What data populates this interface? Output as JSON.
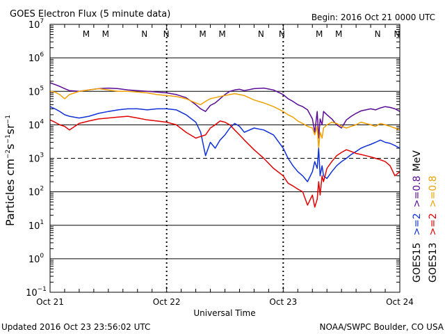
{
  "header": {
    "title": "GOES Electron Flux (5 minute data)",
    "begin": "Begin: 2016 Oct 21 0000 UTC"
  },
  "footer": {
    "updated": "Updated 2016 Oct 23 23:56:02 UTC",
    "credit": "NOAA/SWPC Boulder, CO USA"
  },
  "colors": {
    "purple": "#5a0a96",
    "orange": "#f0a000",
    "blue": "#1030d8",
    "red": "#e00000",
    "frame": "#000000"
  },
  "chart_data": {
    "type": "line",
    "title": "GOES Electron Flux (5 minute data)",
    "xlabel": "Universal Time",
    "ylabel": "Particles cm-2s-1sr-1",
    "ylabel_parts": {
      "main": "Particles cm",
      "e1": "−2",
      "s": "s",
      "e2": "−1",
      "sr": "sr",
      "e3": "−1"
    },
    "yscale": "log",
    "ylim": [
      0.1,
      10000000
    ],
    "y_ticks": [
      {
        "mant": "10",
        "exp": "7",
        "value": 10000000
      },
      {
        "mant": "10",
        "exp": "6",
        "value": 1000000
      },
      {
        "mant": "10",
        "exp": "5",
        "value": 100000
      },
      {
        "mant": "10",
        "exp": "4",
        "value": 10000
      },
      {
        "mant": "10",
        "exp": "3",
        "value": 1000
      },
      {
        "mant": "10",
        "exp": "2",
        "value": 100
      },
      {
        "mant": "10",
        "exp": "1",
        "value": 10
      },
      {
        "mant": "10",
        "exp": "0",
        "value": 1
      },
      {
        "mant": "10",
        "exp": "−1",
        "value": 0.1
      }
    ],
    "xlim": [
      0,
      72
    ],
    "x_unit": "hours since 2016 Oct 21 00:00 UTC",
    "x_ticks": [
      {
        "label": "Oct 21",
        "hours": 0
      },
      {
        "label": "Oct 22",
        "hours": 24
      },
      {
        "label": "Oct 23",
        "hours": 48
      },
      {
        "label": "Oct 24",
        "hours": 72
      }
    ],
    "gridlines_solid": [
      1000000,
      100000,
      10000,
      100,
      10,
      1
    ],
    "threshold_line": {
      "value": 1000,
      "style": "dashed"
    },
    "markers": [
      {
        "label": "M",
        "hours": 8.0,
        "color": "#e00000"
      },
      {
        "label": "M",
        "hours": 12.0,
        "color": "#1030d8"
      },
      {
        "label": "N",
        "hours": 20.0,
        "color": "#e00000"
      },
      {
        "label": "N",
        "hours": 24.5,
        "color": "#1030d8"
      },
      {
        "label": "M",
        "hours": 32.0,
        "color": "#e00000"
      },
      {
        "label": "M",
        "hours": 36.0,
        "color": "#1030d8"
      },
      {
        "label": "N",
        "hours": 44.0,
        "color": "#e00000"
      },
      {
        "label": "N",
        "hours": 48.3,
        "color": "#1030d8"
      },
      {
        "label": "M",
        "hours": 56.0,
        "color": "#e00000"
      },
      {
        "label": "M",
        "hours": 60.0,
        "color": "#1030d8"
      },
      {
        "label": "N",
        "hours": 68.0,
        "color": "#e00000"
      },
      {
        "label": "N",
        "hours": 72.0,
        "color": "#1030d8"
      }
    ],
    "legend": {
      "placement": "right, vertical",
      "goes15": "GOES15",
      "goes13": "GOES13",
      "goes15_2": ">=2",
      "goes15_08": ">=0.8",
      "goes13_2": ">=2",
      "goes13_08": ">=0.8",
      "unit": "MeV"
    },
    "series": [
      {
        "name": "GOES15 >=0.8 MeV",
        "color": "#5a0a96",
        "x": [
          0,
          1,
          2,
          3,
          4,
          6,
          8,
          10,
          12,
          14,
          16,
          18,
          20,
          22,
          24,
          26,
          28,
          30,
          31,
          32,
          33,
          34,
          35,
          36,
          37,
          38,
          39,
          40,
          42,
          44,
          46,
          48,
          49,
          50,
          51,
          52,
          53,
          54,
          54.5,
          55,
          55.3,
          55.6,
          56,
          56.3,
          57,
          58,
          59,
          60,
          61,
          62,
          63,
          64,
          65,
          66,
          67,
          68,
          69,
          70,
          71,
          72
        ],
        "y": [
          180000,
          160000,
          140000,
          120000,
          105000,
          100000,
          110000,
          120000,
          125000,
          120000,
          110000,
          105000,
          100000,
          95000,
          90000,
          80000,
          65000,
          40000,
          30000,
          25000,
          38000,
          45000,
          60000,
          80000,
          100000,
          110000,
          115000,
          105000,
          120000,
          125000,
          110000,
          80000,
          60000,
          50000,
          40000,
          35000,
          28000,
          15000,
          6000,
          25000,
          4000,
          15000,
          10000,
          25000,
          20000,
          15000,
          10000,
          8000,
          14000,
          18000,
          22000,
          26000,
          28000,
          30000,
          28000,
          32000,
          35000,
          33000,
          30000,
          25000
        ]
      },
      {
        "name": "GOES13 >=0.8 MeV",
        "color": "#f0a000",
        "x": [
          0,
          1,
          2,
          3,
          4,
          6,
          8,
          10,
          12,
          14,
          16,
          18,
          20,
          22,
          24,
          26,
          28,
          30,
          31,
          32,
          33,
          34,
          35,
          36,
          37,
          38,
          39,
          40,
          42,
          44,
          46,
          48,
          49,
          50,
          51,
          52,
          53,
          54,
          54.5,
          55,
          55.3,
          55.6,
          56,
          56.3,
          57,
          58,
          59,
          60,
          61,
          62,
          63,
          64,
          65,
          66,
          67,
          68,
          69,
          70,
          71,
          72
        ],
        "y": [
          100000,
          95000,
          80000,
          60000,
          80000,
          100000,
          110000,
          120000,
          110000,
          100000,
          100000,
          95000,
          90000,
          80000,
          75000,
          70000,
          60000,
          45000,
          40000,
          50000,
          60000,
          65000,
          70000,
          75000,
          80000,
          85000,
          80000,
          75000,
          55000,
          45000,
          35000,
          25000,
          20000,
          17000,
          13000,
          11000,
          9000,
          8000,
          5000,
          9000,
          2000,
          6000,
          4000,
          8000,
          10000,
          12000,
          11000,
          9000,
          8000,
          9000,
          10000,
          12000,
          11000,
          10000,
          9000,
          11000,
          10000,
          9000,
          8000,
          7000
        ]
      },
      {
        "name": "GOES15 >=2 MeV",
        "color": "#1030d8",
        "x": [
          0,
          1,
          2,
          3,
          4,
          6,
          8,
          10,
          12,
          14,
          16,
          18,
          20,
          22,
          24,
          26,
          28,
          30,
          31,
          32,
          33,
          34,
          35,
          36,
          37,
          38,
          39,
          40,
          42,
          44,
          46,
          48,
          49,
          50,
          51,
          52,
          53,
          54,
          54.5,
          55,
          55.3,
          55.6,
          56,
          56.3,
          57,
          58,
          59,
          60,
          61,
          62,
          63,
          64,
          65,
          66,
          67,
          68,
          69,
          70,
          71,
          72
        ],
        "y": [
          35000,
          30000,
          25000,
          20000,
          18000,
          16000,
          18000,
          22000,
          25000,
          28000,
          30000,
          30000,
          28000,
          30000,
          30000,
          28000,
          20000,
          12000,
          6000,
          1200,
          3000,
          2000,
          3500,
          5000,
          8000,
          11000,
          9000,
          6000,
          8000,
          7000,
          5000,
          2000,
          1000,
          600,
          400,
          300,
          200,
          400,
          800,
          500,
          2000,
          300,
          600,
          300,
          250,
          400,
          600,
          800,
          1000,
          1300,
          1600,
          2000,
          2300,
          2600,
          3000,
          3500,
          3000,
          2800,
          2400,
          2000
        ]
      },
      {
        "name": "GOES13 >=2 MeV",
        "color": "#e00000",
        "x": [
          0,
          1,
          2,
          3,
          4,
          6,
          8,
          10,
          12,
          14,
          16,
          18,
          20,
          22,
          24,
          26,
          28,
          30,
          31,
          32,
          33,
          34,
          35,
          36,
          37,
          38,
          39,
          40,
          42,
          44,
          46,
          48,
          49,
          50,
          51,
          52,
          53,
          54,
          54.5,
          55,
          55.3,
          55.6,
          56,
          56.3,
          57,
          58,
          59,
          60,
          61,
          62,
          63,
          64,
          65,
          66,
          67,
          68,
          69,
          70,
          71,
          72
        ],
        "y": [
          14000,
          12000,
          10000,
          9000,
          7000,
          11000,
          13000,
          15000,
          16000,
          17000,
          18000,
          16000,
          14000,
          13000,
          12000,
          10000,
          6000,
          4000,
          4500,
          5000,
          8000,
          10000,
          13000,
          12000,
          10000,
          7000,
          5000,
          3500,
          1800,
          1000,
          500,
          300,
          180,
          150,
          120,
          100,
          40,
          80,
          35,
          60,
          200,
          80,
          300,
          200,
          500,
          800,
          1200,
          1500,
          1800,
          1600,
          1400,
          1300,
          1200,
          1100,
          1000,
          900,
          800,
          600,
          300,
          400
        ]
      }
    ]
  }
}
